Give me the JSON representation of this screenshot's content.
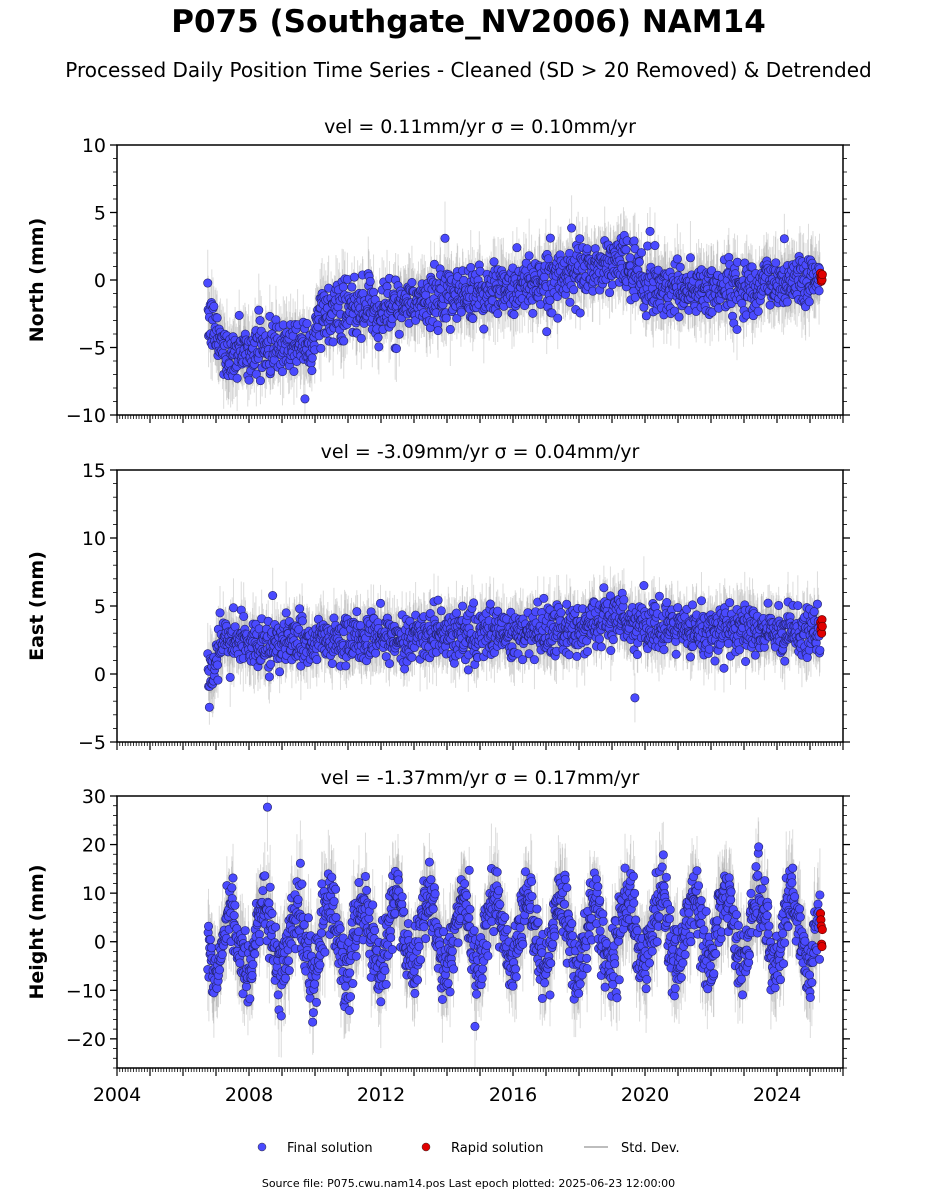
{
  "figure": {
    "title": "P075 (Southgate_NV2006) NAM14",
    "subtitle": "Processed Daily Position Time Series - Cleaned (SD > 20 Removed) & Detrended",
    "footer": "Source file: P075.cwu.nam14.pos  Last epoch plotted: 2025-06-23 12:00:00"
  },
  "chart_data": [
    {
      "type": "scatter",
      "title": "vel = 0.11mm/yr   σ = 0.10mm/yr",
      "ylabel": "North (mm)",
      "xlim": [
        2004.0,
        2026.0
      ],
      "ylim": [
        -10,
        10
      ],
      "yticks": [
        -10,
        -5,
        0,
        5,
        10
      ],
      "xticks": [
        2004,
        2008,
        2012,
        2016,
        2020,
        2024
      ],
      "show_xticklabels": false,
      "trend": [
        [
          2006.8,
          -3.0
        ],
        [
          2007.3,
          -5.5
        ],
        [
          2010.0,
          -4.5
        ],
        [
          2010.1,
          -2.5
        ],
        [
          2013.0,
          -1.8
        ],
        [
          2016.0,
          -0.5
        ],
        [
          2018.5,
          0.8
        ],
        [
          2019.3,
          1.5
        ],
        [
          2020.0,
          -0.5
        ],
        [
          2022.0,
          -0.8
        ],
        [
          2025.3,
          0.3
        ]
      ],
      "series": [
        {
          "name": "Final solution",
          "color": "#4a4aff",
          "x_range": [
            2006.75,
            2025.3
          ],
          "noise": 1.0,
          "count": 1500
        },
        {
          "name": "Rapid solution",
          "color": "#e00000",
          "x_range": [
            2025.32,
            2025.5
          ],
          "y_values": [
            0.5,
            0.2,
            -0.1,
            0.3,
            0.0,
            0.4
          ]
        }
      ]
    },
    {
      "type": "scatter",
      "title": "vel = -3.09mm/yr   σ = 0.04mm/yr",
      "ylabel": "East (mm)",
      "xlim": [
        2004.0,
        2026.0
      ],
      "ylim": [
        -5,
        15
      ],
      "yticks": [
        -5,
        0,
        5,
        10,
        15
      ],
      "xticks": [
        2004,
        2008,
        2012,
        2016,
        2020,
        2024
      ],
      "show_xticklabels": false,
      "trend": [
        [
          2006.8,
          -0.5
        ],
        [
          2007.2,
          2.5
        ],
        [
          2010.0,
          2.3
        ],
        [
          2013.0,
          2.8
        ],
        [
          2016.0,
          3.0
        ],
        [
          2018.5,
          3.5
        ],
        [
          2019.0,
          4.5
        ],
        [
          2020.0,
          3.2
        ],
        [
          2025.3,
          3.2
        ]
      ],
      "series": [
        {
          "name": "Final solution",
          "color": "#4a4aff",
          "x_range": [
            2006.75,
            2025.3
          ],
          "noise": 0.9,
          "count": 1500
        },
        {
          "name": "Rapid solution",
          "color": "#e00000",
          "x_range": [
            2025.32,
            2025.5
          ],
          "y_values": [
            3.8,
            3.3,
            3.6,
            3.0,
            4.0,
            3.5
          ]
        }
      ]
    },
    {
      "type": "scatter",
      "title": "vel = -1.37mm/yr   σ = 0.17mm/yr",
      "ylabel": "Height (mm)",
      "xlim": [
        2004.0,
        2026.0
      ],
      "ylim": [
        -26,
        30
      ],
      "yticks": [
        -20,
        -10,
        0,
        10,
        20,
        30
      ],
      "xticks": [
        2004,
        2008,
        2012,
        2016,
        2020,
        2024
      ],
      "show_xticklabels": true,
      "trend": [
        [
          2006.8,
          0.0
        ],
        [
          2013.0,
          2.0
        ],
        [
          2018.0,
          1.0
        ],
        [
          2023.0,
          3.0
        ],
        [
          2025.3,
          2.0
        ]
      ],
      "seasonal_amplitude": 7,
      "series": [
        {
          "name": "Final solution",
          "color": "#4a4aff",
          "x_range": [
            2006.75,
            2025.3
          ],
          "noise": 3.5,
          "count": 1600
        },
        {
          "name": "Rapid solution",
          "color": "#e00000",
          "x_range": [
            2025.32,
            2025.5
          ],
          "y_values": [
            5.8,
            4.5,
            3.2,
            -0.5,
            -1.0,
            2.5
          ]
        }
      ]
    }
  ],
  "legend": {
    "items": [
      {
        "label": "Final solution",
        "color": "#4a4aff",
        "kind": "marker"
      },
      {
        "label": "Rapid solution",
        "color": "#e00000",
        "kind": "marker"
      },
      {
        "label": "Std. Dev.",
        "color": "#bdbdbd",
        "kind": "line"
      }
    ]
  }
}
